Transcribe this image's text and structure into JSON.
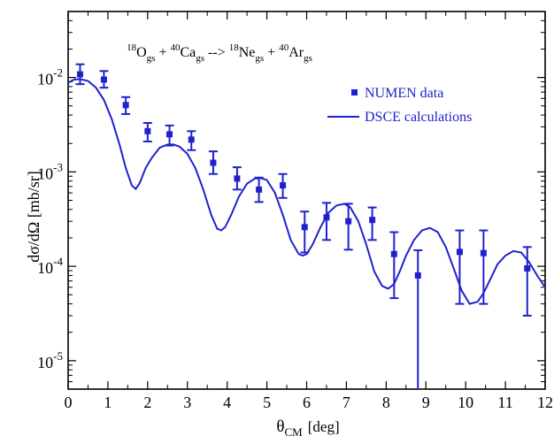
{
  "chart_data": {
    "type": "scatter",
    "reaction": {
      "prefix_mass_1": "18",
      "base_1": "O",
      "sub_1": "gs",
      "plus_1": "+",
      "prefix_mass_2": "40",
      "base_2": "Ca",
      "sub_2": "gs",
      "arrow": "-->",
      "prefix_mass_3": "18",
      "base_3": "Ne",
      "sub_3": "gs",
      "plus_2": "+",
      "prefix_mass_4": "40",
      "base_4": "Ar",
      "sub_4": "gs"
    },
    "xlabel_base": "θ",
    "xlabel_sub": "CM",
    "xlabel_unit": "[deg]",
    "ylabel": "dσ/dΩ   [mb/sr]",
    "xlim": [
      0,
      12
    ],
    "ylim": [
      5e-06,
      0.05
    ],
    "yscale": "log",
    "x_ticks": [
      "0",
      "1",
      "2",
      "3",
      "4",
      "5",
      "6",
      "7",
      "8",
      "9",
      "10",
      "11",
      "12"
    ],
    "y_ticks": [
      {
        "base": "10",
        "exp": "-5",
        "value": 1e-05
      },
      {
        "base": "10",
        "exp": "-4",
        "value": 0.0001
      },
      {
        "base": "10",
        "exp": "-3",
        "value": 0.001
      },
      {
        "base": "10",
        "exp": "-2",
        "value": 0.01
      }
    ],
    "color": "#1f22cc",
    "legend_position": "top-right",
    "series": [
      {
        "name": "NUMEN data",
        "kind": "points",
        "points": [
          {
            "x": 0.3,
            "y": 0.0108,
            "lo": 0.0085,
            "hi": 0.0138
          },
          {
            "x": 0.9,
            "y": 0.0095,
            "lo": 0.0078,
            "hi": 0.0117
          },
          {
            "x": 1.45,
            "y": 0.0051,
            "lo": 0.0041,
            "hi": 0.0062
          },
          {
            "x": 2.0,
            "y": 0.0027,
            "lo": 0.0021,
            "hi": 0.0033
          },
          {
            "x": 2.55,
            "y": 0.0025,
            "lo": 0.0019,
            "hi": 0.0031
          },
          {
            "x": 3.1,
            "y": 0.0022,
            "lo": 0.0017,
            "hi": 0.0027
          },
          {
            "x": 3.65,
            "y": 0.00125,
            "lo": 0.00095,
            "hi": 0.00165
          },
          {
            "x": 4.25,
            "y": 0.00085,
            "lo": 0.00065,
            "hi": 0.00112
          },
          {
            "x": 4.8,
            "y": 0.00065,
            "lo": 0.00048,
            "hi": 0.00087
          },
          {
            "x": 5.4,
            "y": 0.00072,
            "lo": 0.00053,
            "hi": 0.00095
          },
          {
            "x": 5.95,
            "y": 0.00026,
            "lo": 0.00014,
            "hi": 0.00038
          },
          {
            "x": 6.5,
            "y": 0.00033,
            "lo": 0.00019,
            "hi": 0.00047
          },
          {
            "x": 7.05,
            "y": 0.0003,
            "lo": 0.00015,
            "hi": 0.00046
          },
          {
            "x": 7.65,
            "y": 0.00031,
            "lo": 0.00019,
            "hi": 0.00042
          },
          {
            "x": 8.2,
            "y": 0.000135,
            "lo": 4.6e-05,
            "hi": 0.00023
          },
          {
            "x": 8.8,
            "y": 8e-05,
            "lo": 5e-06,
            "hi": 0.000148
          },
          {
            "x": 9.85,
            "y": 0.000142,
            "lo": 4e-05,
            "hi": 0.00024
          },
          {
            "x": 10.45,
            "y": 0.000138,
            "lo": 4e-05,
            "hi": 0.00024
          },
          {
            "x": 11.55,
            "y": 9.5e-05,
            "lo": 3e-05,
            "hi": 0.00016
          }
        ]
      },
      {
        "name": "DSCE calculations",
        "kind": "curve",
        "x": [
          0.0,
          0.15,
          0.3,
          0.5,
          0.7,
          0.9,
          1.1,
          1.3,
          1.45,
          1.6,
          1.7,
          1.8,
          1.95,
          2.1,
          2.3,
          2.5,
          2.65,
          2.8,
          3.0,
          3.2,
          3.4,
          3.6,
          3.75,
          3.85,
          3.95,
          4.1,
          4.3,
          4.5,
          4.7,
          4.85,
          5.0,
          5.2,
          5.4,
          5.6,
          5.8,
          5.9,
          6.0,
          6.15,
          6.35,
          6.55,
          6.75,
          6.95,
          7.1,
          7.3,
          7.5,
          7.7,
          7.9,
          8.05,
          8.2,
          8.35,
          8.5,
          8.7,
          8.9,
          9.1,
          9.3,
          9.5,
          9.7,
          9.9,
          10.1,
          10.3,
          10.45,
          10.6,
          10.8,
          11.0,
          11.2,
          11.4,
          11.6,
          11.8,
          12.0
        ],
        "y": [
          0.0088,
          0.0095,
          0.0096,
          0.0092,
          0.0078,
          0.0058,
          0.0036,
          0.0019,
          0.0011,
          0.00072,
          0.00066,
          0.00076,
          0.0011,
          0.0014,
          0.0018,
          0.00195,
          0.00195,
          0.00185,
          0.00155,
          0.0011,
          0.00065,
          0.00035,
          0.00025,
          0.00024,
          0.00026,
          0.00035,
          0.00055,
          0.00075,
          0.00085,
          0.00086,
          0.00082,
          0.0006,
          0.00035,
          0.00019,
          0.000135,
          0.00013,
          0.000135,
          0.00017,
          0.00026,
          0.00037,
          0.00044,
          0.00046,
          0.00042,
          0.0003,
          0.00017,
          8.8e-05,
          6.2e-05,
          5.8e-05,
          6.5e-05,
          9e-05,
          0.00013,
          0.00019,
          0.00024,
          0.000255,
          0.00023,
          0.00016,
          9.5e-05,
          5.5e-05,
          4e-05,
          4.2e-05,
          5.2e-05,
          7e-05,
          0.000105,
          0.00013,
          0.000145,
          0.00014,
          0.00011,
          8e-05,
          6e-05
        ]
      }
    ]
  }
}
